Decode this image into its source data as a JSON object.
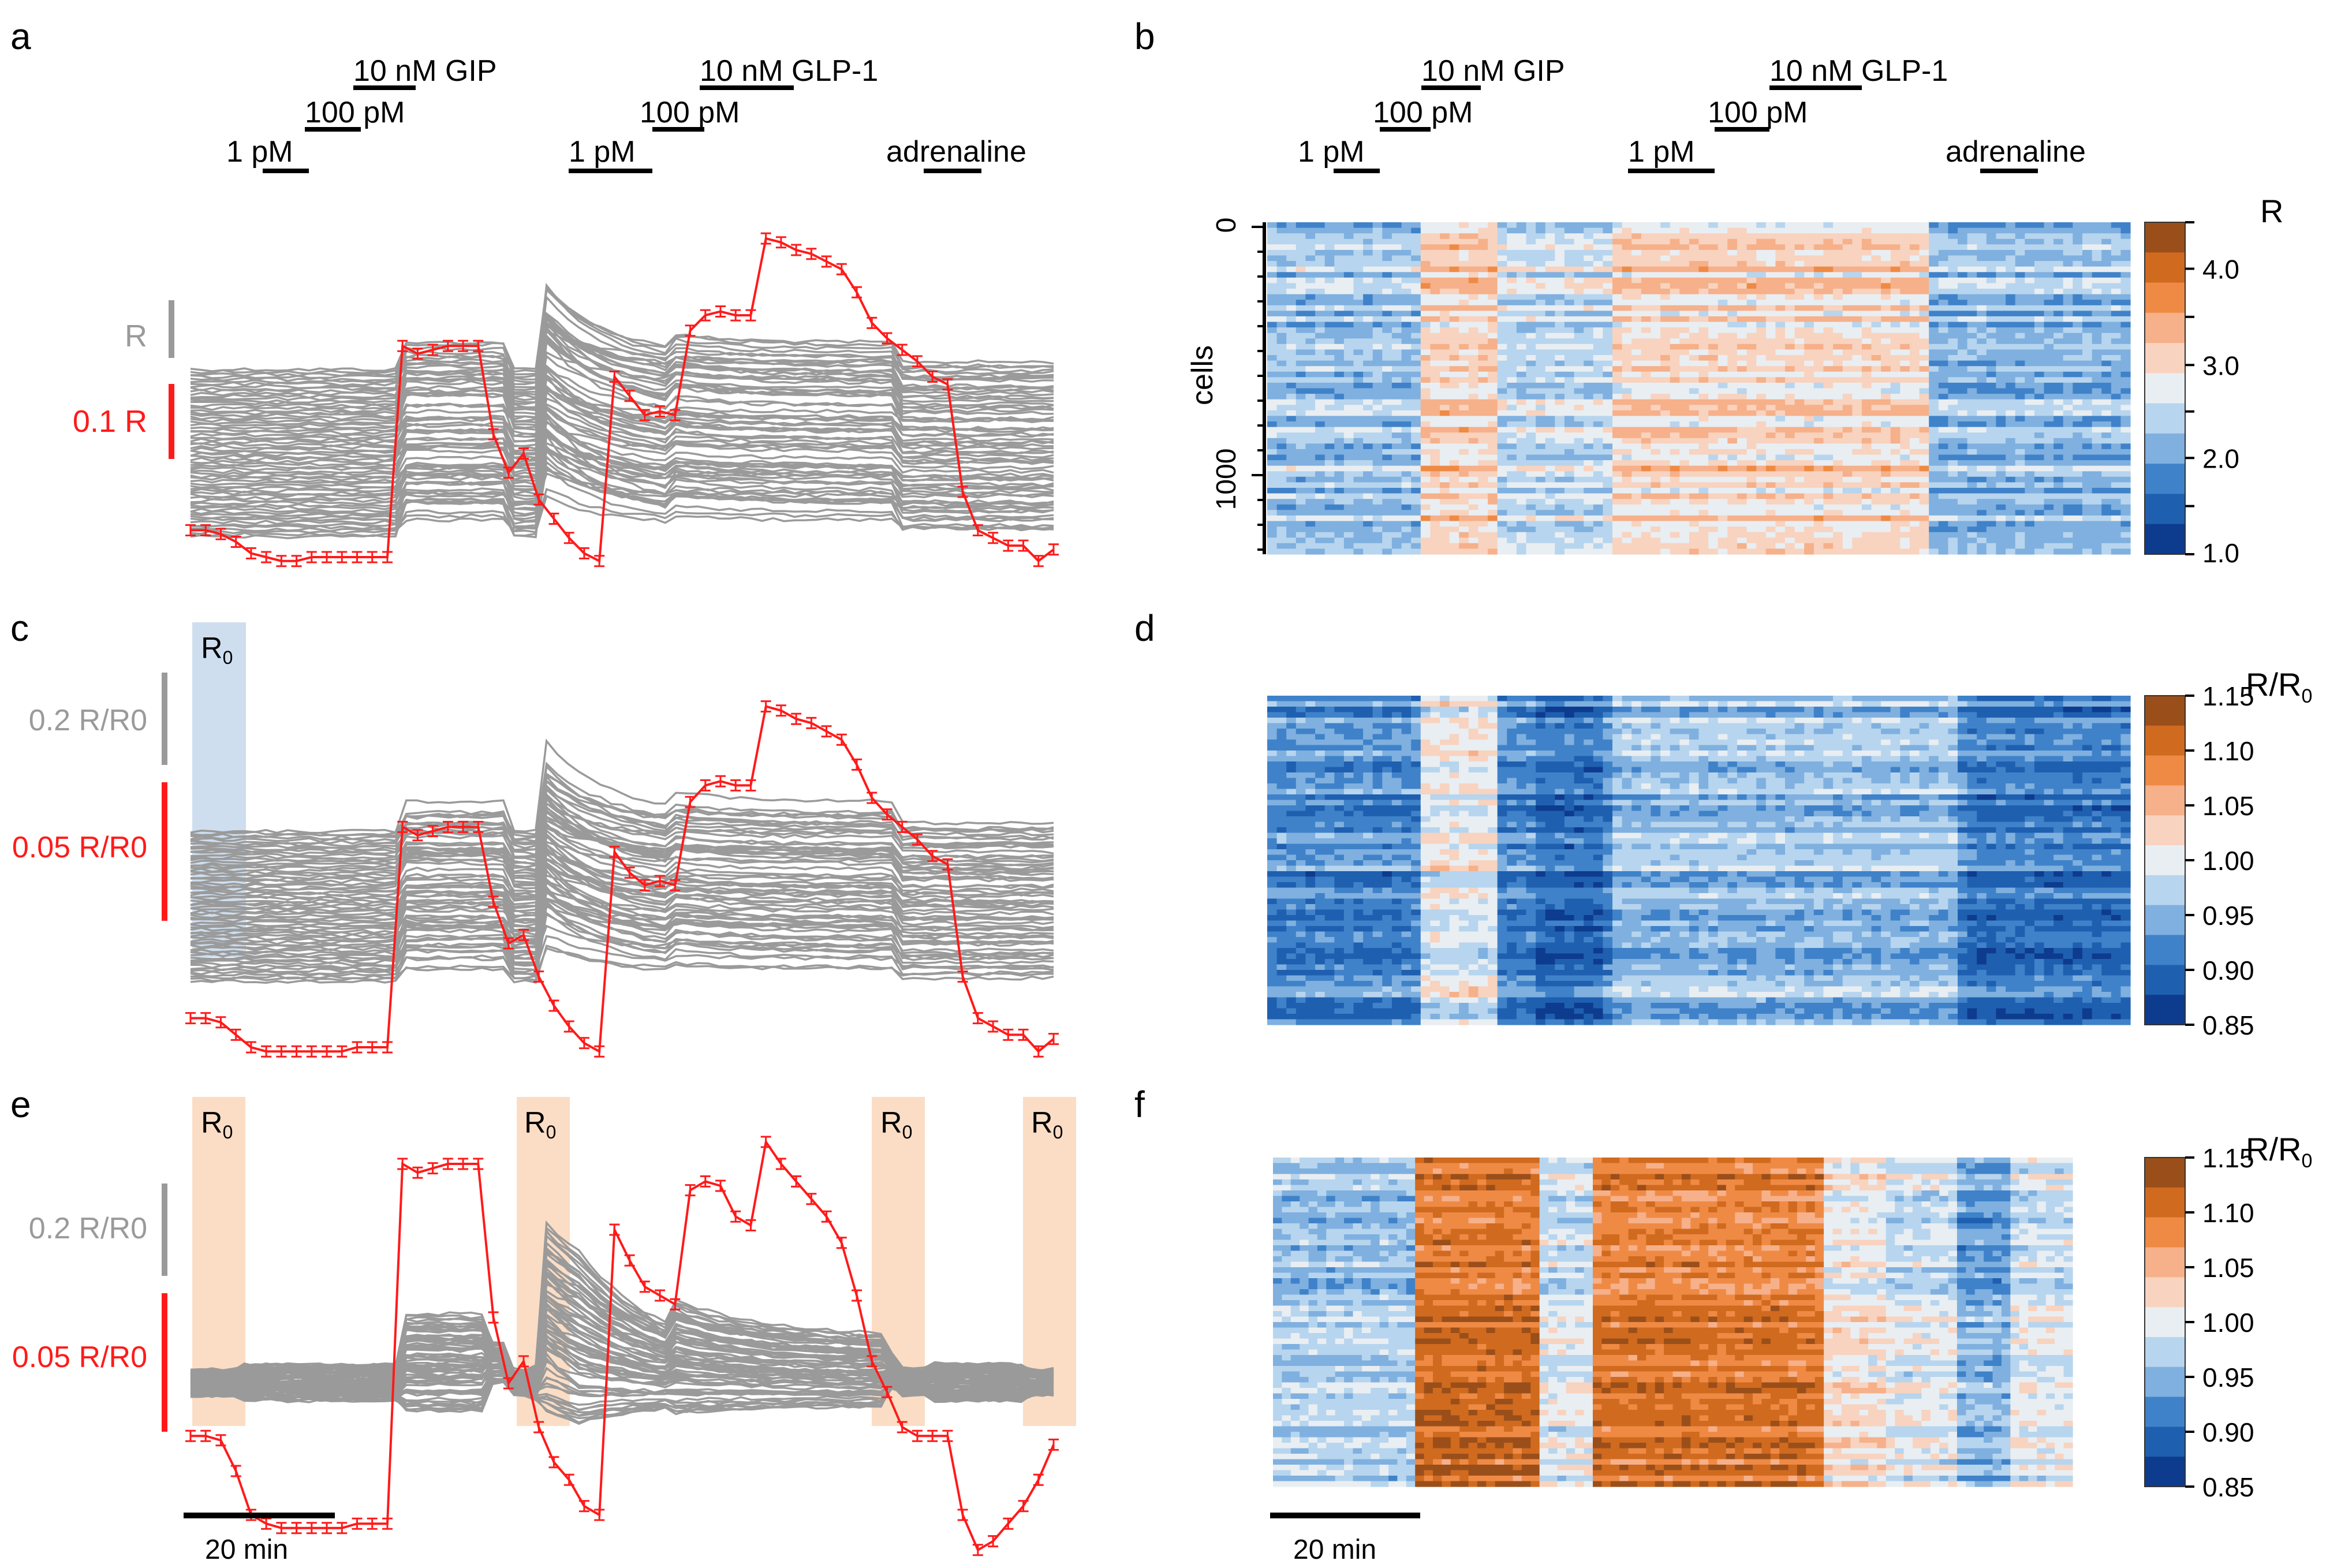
{
  "figure": {
    "panel_letters": [
      "a",
      "b",
      "c",
      "d",
      "e",
      "f"
    ],
    "stimulus_labels": {
      "gip_high": "10 nM GIP",
      "glp1_high": "10 nM GLP-1",
      "mid": "100 pM",
      "low": "1 pM",
      "adrenaline": "adrenaline"
    },
    "timescale_label": "20 min",
    "baseline_label": "R",
    "baseline_subscript": "0"
  },
  "colors": {
    "mean_trace": "#ff1a1a",
    "cell_traces": "#9a9a9a",
    "baseline_c": "#c5d8ec",
    "baseline_e": "#fbd9bf"
  },
  "chart_data": [
    {
      "panel": "a",
      "type": "line",
      "description_from_figure": "single-cell ratio traces (grey) with mean ± s.e.m. (red)",
      "scalebars": [
        {
          "label": "R",
          "color": "grey"
        },
        {
          "label": "0.1 R",
          "color": "red"
        }
      ],
      "x_units": "time (min)",
      "mean_trace_relative": [
        0.1,
        0.1,
        0.09,
        0.07,
        0.04,
        0.03,
        0.02,
        0.02,
        0.03,
        0.03,
        0.03,
        0.03,
        0.03,
        0.03,
        0.58,
        0.56,
        0.57,
        0.58,
        0.58,
        0.58,
        0.35,
        0.25,
        0.3,
        0.18,
        0.13,
        0.08,
        0.04,
        0.02,
        0.5,
        0.45,
        0.4,
        0.41,
        0.4,
        0.62,
        0.66,
        0.67,
        0.66,
        0.66,
        0.86,
        0.85,
        0.83,
        0.82,
        0.8,
        0.78,
        0.72,
        0.64,
        0.6,
        0.57,
        0.54,
        0.5,
        0.48,
        0.2,
        0.1,
        0.08,
        0.06,
        0.06,
        0.02,
        0.05
      ]
    },
    {
      "panel": "b",
      "type": "heatmap",
      "colorbar_title": "R",
      "colorbar_ticks": [
        "1.0",
        "2.0",
        "3.0",
        "4.0"
      ],
      "colorbar_range": [
        1.0,
        4.5
      ],
      "y_axis_label": "cells",
      "y_ticks": [
        "0",
        "1000"
      ],
      "n_cells_approx": 1300
    },
    {
      "panel": "c",
      "type": "line",
      "scalebars": [
        {
          "label": "0.2 R/R0",
          "color": "grey"
        },
        {
          "label": "0.05 R/R0",
          "color": "red"
        }
      ],
      "baseline_window": "R0 (start)",
      "mean_trace_relative": [
        0.12,
        0.12,
        0.11,
        0.08,
        0.05,
        0.04,
        0.04,
        0.04,
        0.04,
        0.04,
        0.04,
        0.05,
        0.05,
        0.05,
        0.58,
        0.56,
        0.57,
        0.58,
        0.58,
        0.58,
        0.4,
        0.3,
        0.32,
        0.22,
        0.15,
        0.1,
        0.06,
        0.04,
        0.52,
        0.47,
        0.44,
        0.45,
        0.44,
        0.64,
        0.68,
        0.69,
        0.68,
        0.68,
        0.87,
        0.86,
        0.84,
        0.83,
        0.81,
        0.79,
        0.73,
        0.65,
        0.61,
        0.58,
        0.55,
        0.51,
        0.49,
        0.22,
        0.12,
        0.1,
        0.08,
        0.08,
        0.04,
        0.07
      ]
    },
    {
      "panel": "d",
      "type": "heatmap",
      "colorbar_title": "R/R0",
      "colorbar_ticks": [
        "0.85",
        "0.90",
        "0.95",
        "1.00",
        "1.05",
        "1.10",
        "1.15"
      ],
      "colorbar_range": [
        0.85,
        1.15
      ]
    },
    {
      "panel": "e",
      "type": "line",
      "scalebars": [
        {
          "label": "0.2 R/R0",
          "color": "grey"
        },
        {
          "label": "0.05 R/R0",
          "color": "red"
        }
      ],
      "baseline_windows": [
        "R0",
        "R0",
        "R0",
        "R0"
      ],
      "mean_trace_relative": [
        0.28,
        0.28,
        0.27,
        0.2,
        0.1,
        0.08,
        0.07,
        0.07,
        0.07,
        0.07,
        0.07,
        0.08,
        0.08,
        0.08,
        0.9,
        0.88,
        0.89,
        0.9,
        0.9,
        0.9,
        0.55,
        0.4,
        0.45,
        0.3,
        0.22,
        0.18,
        0.12,
        0.1,
        0.75,
        0.68,
        0.62,
        0.6,
        0.58,
        0.84,
        0.86,
        0.85,
        0.78,
        0.76,
        0.95,
        0.9,
        0.86,
        0.82,
        0.78,
        0.72,
        0.6,
        0.45,
        0.38,
        0.3,
        0.28,
        0.28,
        0.28,
        0.1,
        0.02,
        0.04,
        0.08,
        0.12,
        0.18,
        0.26
      ]
    },
    {
      "panel": "f",
      "type": "heatmap",
      "colorbar_title": "R/R0",
      "colorbar_ticks": [
        "0.85",
        "0.90",
        "0.95",
        "1.00",
        "1.05",
        "1.10",
        "1.15"
      ],
      "colorbar_range": [
        0.85,
        1.15
      ]
    }
  ]
}
